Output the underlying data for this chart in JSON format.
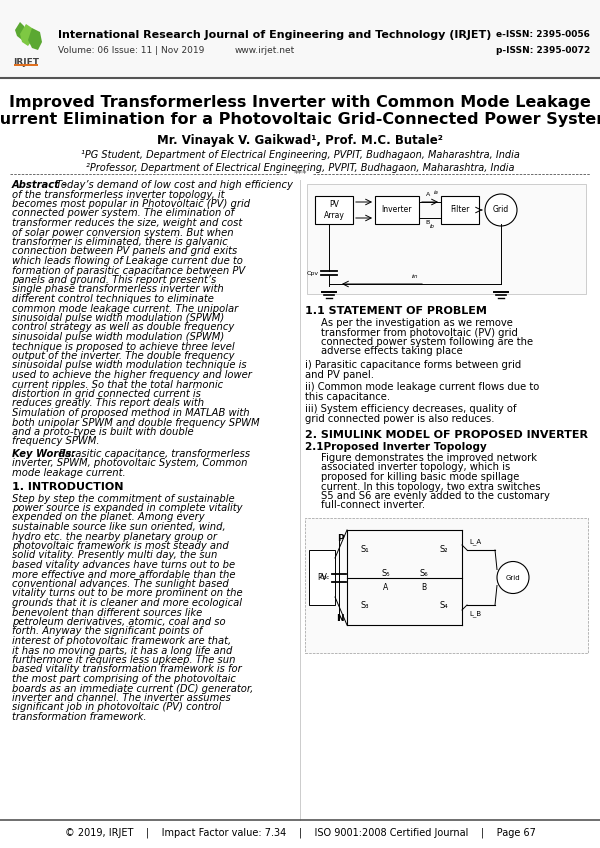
{
  "page_bg": "#ffffff",
  "journal_name": "International Research Journal of Engineering and Technology (IRJET)",
  "journal_issn_e": "e-ISSN: 2395-0056",
  "journal_issn_p": "p-ISSN: 2395-0072",
  "journal_vol": "Volume: 06 Issue: 11 | Nov 2019",
  "journal_web": "www.irjet.net",
  "paper_title_line1": "Improved Transformerless Inverter with Common Mode Leakage",
  "paper_title_line2": "Current Elimination for a Photovoltaic Grid-Connected Power System",
  "authors": "Mr. Vinayak V. Gaikwad¹, Prof. M.C. Butale²",
  "affil1": "¹PG Student, Department of Electrical Engineering, PVPIT, Budhagaon, Maharashtra, India",
  "affil2": "²Professor, Department of Electrical Engineering, PVPIT, Budhagaon, Maharashtra, India",
  "abstract_label": "Abstract - ",
  "abstract_text": "Today’s demand of low cost and high efficiency of the transformerless inverter topology, it becomes most popular in Photovoltaic (PV) grid connected power system. The elimination of transformer reduces the size, weight and cost of solar power conversion system. But when transformer is eliminated, there is galvanic connection between PV panels and grid exits which leads flowing of Leakage current due to formation of parasitic capacitance between PV panels and ground. This report present’s single phase transformerless inverter with different control techniques to eliminate common mode leakage current. The unipolar sinusoidal pulse width modulation (SPWM) control strategy as well as double frequency sinusoidal pulse width modulation (SPWM) technique is proposed to achieve three level output of the inverter. The double frequency sinusoidal pulse width modulation technique is used to achieve the higher frequency and lower current ripples. So that the total harmonic distortion in grid connected current is reduces greatly. This report deals with Simulation of proposed method in MATLAB with both unipolar SPWM and double frequency SPWM and a proto-type is built with double frequency SPWM.",
  "keywords_label": "Key Words: ",
  "keywords_text": "Parasitic capacitance, transformerless inverter, SPWM, photovoltaic System, Common mode leakage current.",
  "section1_title": "1. INTRODUCTION",
  "section1_text": "Step by step the commitment of sustainable power source is expanded in complete vitality expended on the planet. Among every sustainable source like sun oriented, wind, hydro etc. the nearby planetary group or photovoltaic framework is most steady and solid vitality. Presently multi day, the sun based vitality advances have turns out to be more effective and more affordable than the conventional advances. The sunlight based vitality turns out to be more prominent on the grounds that it is cleaner and more ecological benevolent than different sources like petroleum derivatives, atomic, coal and so forth. Anyway the significant points of interest of photovoltaic framework are that, it has no moving parts, it has a long life and furthermore it requires less upkeep. The sun based vitality transformation framework is for the most part comprising of the photovoltaic boards as an immediate current (DC) generator, inverter and channel. The inverter assumes significant job in photovoltaic (PV) control transformation framework.",
  "section2_title": "1.1 STATEMENT OF PROBLEM",
  "section2_text1": "As per the investigation as we remove transformer from photovoltaic (PV) grid connected power system following are the adverse effects taking place",
  "section2_text2": "i) Parasitic capacitance forms between grid and PV panel.",
  "section2_text3": "ii) Common mode leakage current flows due to this capacitance.",
  "section2_text4": "iii) System efficiency decreases, quality of grid connected power is also reduces.",
  "section3_title": "2. SIMULINK MODEL OF PROPOSED INVERTER",
  "section3_sub": "2.1Proposed Inverter Topology",
  "section3_text": "Figure demonstrates the improved network associated inverter topology, which is proposed for killing basic mode spillage current. In this topology, two extra switches S5 and S6 are evenly added to the customary full-connect inverter.",
  "footer_text": "© 2019, IRJET    |    Impact Factor value: 7.34    |    ISO 9001:2008 Certified Journal    |    Page 67"
}
